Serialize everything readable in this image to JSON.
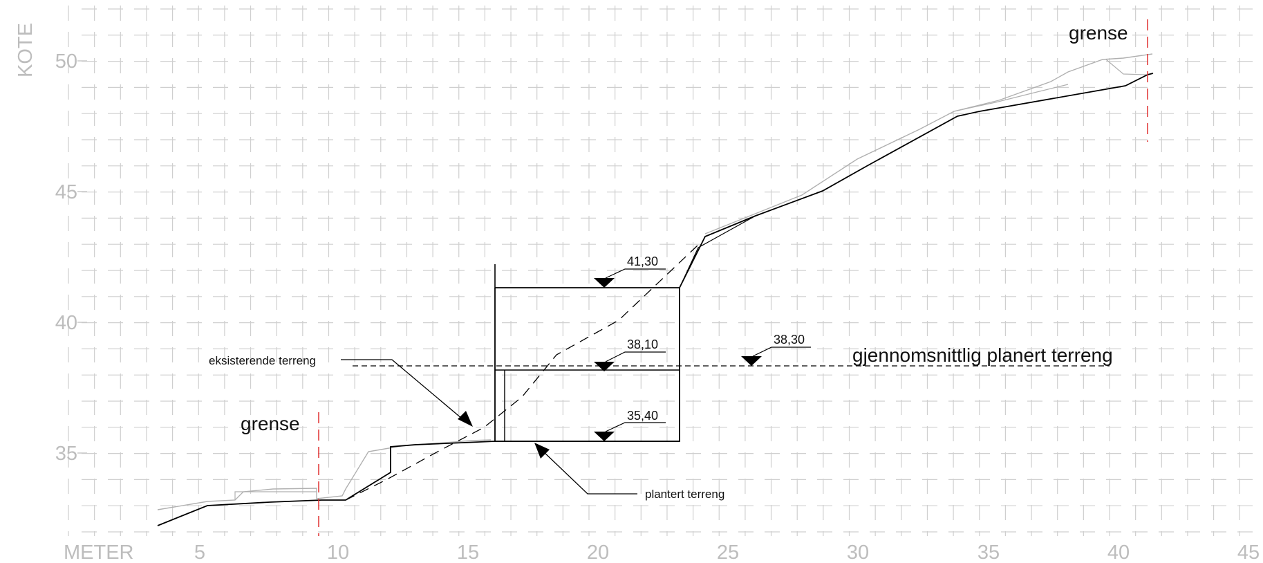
{
  "axes": {
    "x_title": "METER",
    "y_title": "KOTE",
    "x_ticks": [
      "5",
      "10",
      "15",
      "20",
      "25",
      "30",
      "35",
      "40",
      "45"
    ],
    "y_ticks": [
      "50",
      "45",
      "40",
      "35"
    ],
    "x_range": [
      0,
      45
    ],
    "y_range": [
      32,
      52
    ],
    "grid": true
  },
  "labels": {
    "boundary_left": "grense",
    "boundary_right": "grense",
    "existing_terrain": "eksisterende terreng",
    "planned_terrain": "plantert terreng",
    "average_planned": "gjennomsnittlig planert terreng"
  },
  "levels": [
    {
      "id": "top",
      "text": "41,30"
    },
    {
      "id": "mid",
      "text": "38,10"
    },
    {
      "id": "bottom",
      "text": "35,40"
    },
    {
      "id": "avg",
      "text": "38,30"
    }
  ],
  "colors": {
    "grid": "#cfcfcf",
    "axis_text": "#bdbdbd",
    "boundary": "#e03030",
    "line": "#000000",
    "existing_grey": "#b0b0b0"
  }
}
